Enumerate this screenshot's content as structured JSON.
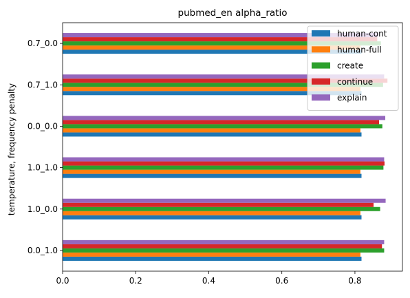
{
  "chart_data": {
    "type": "bar",
    "orientation": "horizontal",
    "title": "pubmed_en alpha_ratio",
    "xlabel": "",
    "ylabel": "temperature, frequency penalty",
    "xlim": [
      0,
      0.93
    ],
    "xticks": [
      0.0,
      0.2,
      0.4,
      0.6,
      0.8
    ],
    "xtick_labels": [
      "0.0",
      "0.2",
      "0.4",
      "0.6",
      "0.8"
    ],
    "categories": [
      "0.0_1.0",
      "1.0_0.0",
      "1.0_1.0",
      "0.0_0.0",
      "0.7_1.0",
      "0.7_0.0"
    ],
    "series": [
      {
        "name": "human-cont",
        "color": "#1f77b4",
        "values": [
          0.818,
          0.818,
          0.818,
          0.818,
          0.818,
          0.818
        ]
      },
      {
        "name": "human-full",
        "color": "#ff7f0e",
        "values": [
          0.815,
          0.815,
          0.815,
          0.815,
          0.815,
          0.815
        ]
      },
      {
        "name": "create",
        "color": "#2ca02c",
        "values": [
          0.88,
          0.869,
          0.878,
          0.875,
          0.877,
          0.871
        ]
      },
      {
        "name": "continue",
        "color": "#d62728",
        "values": [
          0.874,
          0.851,
          0.881,
          0.866,
          0.889,
          0.861
        ]
      },
      {
        "name": "explain",
        "color": "#9467bd",
        "values": [
          0.88,
          0.884,
          0.88,
          0.883,
          0.88,
          0.864
        ]
      }
    ],
    "grid": false,
    "legend": "top-right"
  }
}
